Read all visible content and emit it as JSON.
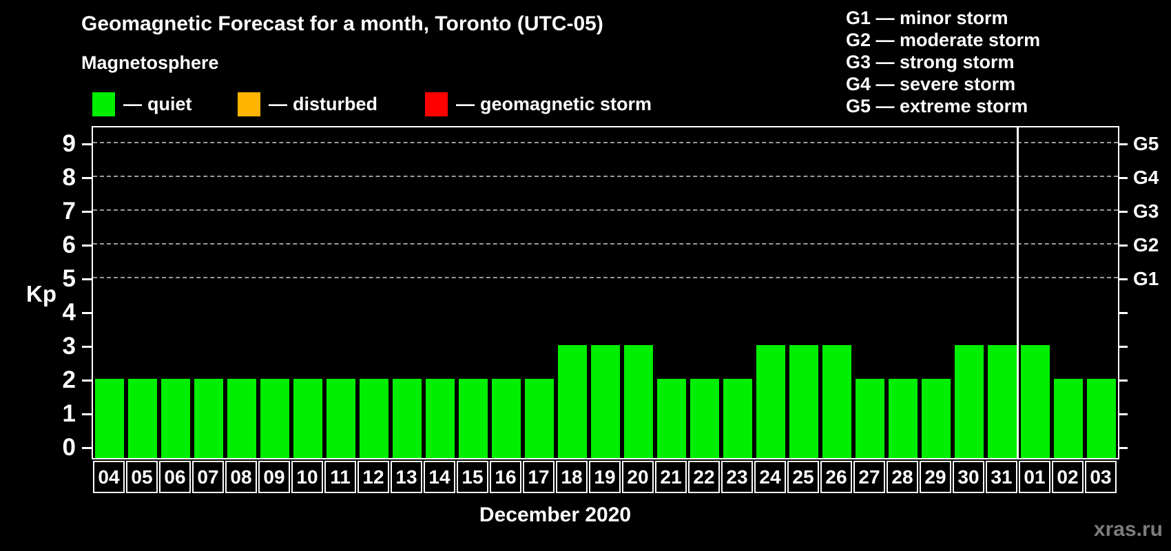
{
  "title": "Geomagnetic Forecast for a month, Toronto (UTC-05)",
  "subtitle": "Magnetosphere",
  "legend": {
    "separator": "—",
    "items": [
      {
        "label": "quiet",
        "color": "#00ee00"
      },
      {
        "label": "disturbed",
        "color": "#ffb400"
      },
      {
        "label": "geomagnetic storm",
        "color": "#ff0000"
      }
    ]
  },
  "storm_scale": {
    "separator": "—",
    "items": [
      {
        "code": "G1",
        "label": "minor storm"
      },
      {
        "code": "G2",
        "label": "moderate storm"
      },
      {
        "code": "G3",
        "label": "strong storm"
      },
      {
        "code": "G4",
        "label": "severe storm"
      },
      {
        "code": "G5",
        "label": "extreme storm"
      }
    ]
  },
  "chart_data": {
    "type": "bar",
    "title": "Geomagnetic Forecast for a month, Toronto (UTC-05)",
    "xlabel": "December 2020",
    "ylabel": "Kp",
    "ylim": [
      0,
      9
    ],
    "y_ticks": [
      0,
      1,
      2,
      3,
      4,
      5,
      6,
      7,
      8,
      9
    ],
    "gridlines_at": [
      5,
      6,
      7,
      8,
      9
    ],
    "grid_style": "dashed",
    "legend_position": "top",
    "categories": [
      "04",
      "05",
      "06",
      "07",
      "08",
      "09",
      "10",
      "11",
      "12",
      "13",
      "14",
      "15",
      "16",
      "17",
      "18",
      "19",
      "20",
      "21",
      "22",
      "23",
      "24",
      "25",
      "26",
      "27",
      "28",
      "29",
      "30",
      "31",
      "01",
      "02",
      "03"
    ],
    "values": [
      2,
      2,
      2,
      2,
      2,
      2,
      2,
      2,
      2,
      2,
      2,
      2,
      2,
      2,
      3,
      3,
      3,
      2,
      2,
      2,
      3,
      3,
      3,
      2,
      2,
      2,
      3,
      3,
      3,
      2,
      2
    ],
    "bar_color": "#00ee00",
    "right_axis": [
      {
        "kp": 5,
        "label": "G1"
      },
      {
        "kp": 6,
        "label": "G2"
      },
      {
        "kp": 7,
        "label": "G3"
      },
      {
        "kp": 8,
        "label": "G4"
      },
      {
        "kp": 9,
        "label": "G5"
      }
    ],
    "month_separator_after_index": 27
  },
  "watermark": "xras.ru",
  "colors": {
    "background": "#000000",
    "axis": "#ffffff",
    "grid": "#9b9b9b",
    "text": "#ffffff",
    "watermark": "#7c7c7c"
  }
}
